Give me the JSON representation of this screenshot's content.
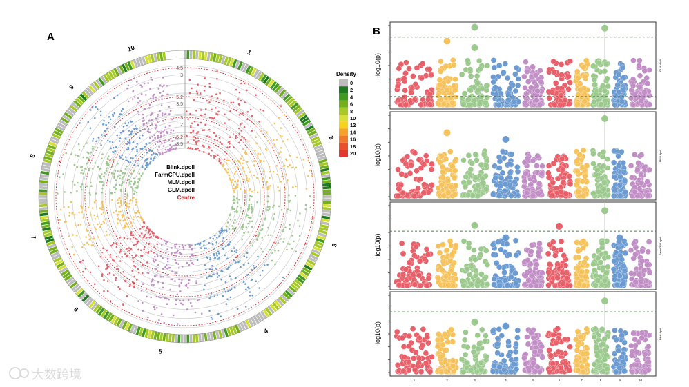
{
  "panel_labels": {
    "a": "A",
    "b": "B"
  },
  "watermark": "大数跨境",
  "chart_data": [
    {
      "type": "scatter",
      "subtype": "circular-manhattan",
      "title": "A",
      "chromosomes": [
        "1",
        "2",
        "3",
        "4",
        "5",
        "6",
        "7",
        "8",
        "9",
        "10"
      ],
      "chromosome_colors": [
        "#e8606a",
        "#f6c25c",
        "#9cc98d",
        "#6b9bd0",
        "#c18fc6",
        "#e8606a",
        "#f6c25c",
        "#9cc98d",
        "#6b9bd0",
        "#c18fc6"
      ],
      "tracks": [
        {
          "name": "Blink.dpoll",
          "axis_labels": [
            "4.5",
            "3"
          ]
        },
        {
          "name": "FarmCPU.dpoll",
          "axis_labels": [
            "5.2",
            "3.5"
          ]
        },
        {
          "name": "MLM.dpoll",
          "axis_labels": [
            "3",
            "2"
          ]
        },
        {
          "name": "GLM.dpoll",
          "axis_labels": [
            "5.2",
            "3.5"
          ]
        }
      ],
      "centre_label": "Centre",
      "threshold_color": "#d62728",
      "legend": {
        "title": "Density",
        "position": "right",
        "entries": [
          "0",
          "2",
          "4",
          "6",
          "8",
          "10",
          "12",
          "14",
          "16",
          "18",
          "20"
        ],
        "colors": [
          "#bdbdbd",
          "#1f7a1f",
          "#3f9a1f",
          "#74b01e",
          "#a6c928",
          "#d6e03a",
          "#f7d11e",
          "#f7a12a",
          "#f07a2a",
          "#e8502e",
          "#e03a2e"
        ]
      }
    },
    {
      "type": "scatter",
      "subtype": "manhattan",
      "title": "B",
      "ylabel": "-log10(p)",
      "x_ticks": [
        "1",
        "2",
        "3",
        "4",
        "5",
        "6",
        "7",
        "8",
        "9",
        "10"
      ],
      "threshold_color": "#3a8a3a",
      "highlight_chromosome": "8",
      "panels": [
        {
          "name": "GLM.dpoll",
          "thresholds": [
            0.85,
            0.12
          ],
          "peaks": [
            {
              "chr": "3",
              "y": 0.97
            },
            {
              "chr": "8",
              "y": 0.96
            },
            {
              "chr": "2",
              "y": 0.8
            },
            {
              "chr": "3",
              "y": 0.72
            }
          ]
        },
        {
          "name": "MLM.dpoll",
          "thresholds": [],
          "peaks": [
            {
              "chr": "8",
              "y": 0.95
            },
            {
              "chr": "2",
              "y": 0.78
            },
            {
              "chr": "4",
              "y": 0.7
            }
          ]
        },
        {
          "name": "FarmCPU.dpoll",
          "thresholds": [
            0.68
          ],
          "peaks": [
            {
              "chr": "8",
              "y": 0.93
            },
            {
              "chr": "3",
              "y": 0.75
            },
            {
              "chr": "6",
              "y": 0.74
            },
            {
              "chr": "9",
              "y": 0.6
            },
            {
              "chr": "4",
              "y": 0.6
            }
          ]
        },
        {
          "name": "Blink.dpoll",
          "thresholds": [
            0.78
          ],
          "peaks": [
            {
              "chr": "8",
              "y": 0.92
            },
            {
              "chr": "3",
              "y": 0.65
            },
            {
              "chr": "4",
              "y": 0.6
            }
          ]
        }
      ]
    }
  ]
}
